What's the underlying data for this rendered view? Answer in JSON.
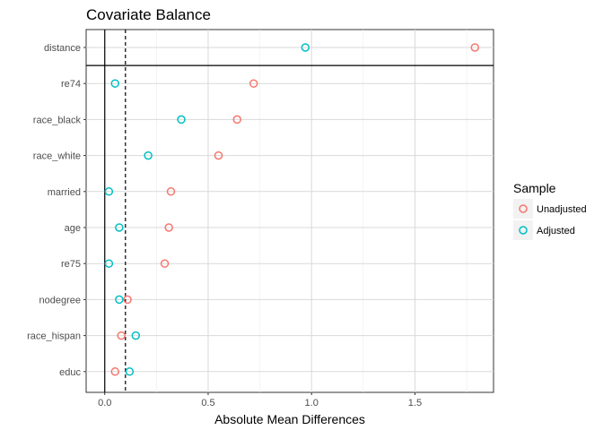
{
  "chart_data": {
    "type": "scatter",
    "title": "Covariate Balance",
    "xlabel": "Absolute Mean Differences",
    "ylabel": "",
    "xlim": [
      -0.09,
      1.88
    ],
    "xticks": [
      0.0,
      0.5,
      1.0,
      1.5
    ],
    "xtick_labels": [
      "0.0",
      "0.5",
      "1.0",
      "1.5"
    ],
    "threshold": 0.1,
    "categories": [
      "distance",
      "re74",
      "race_black",
      "race_white",
      "married",
      "age",
      "re75",
      "nodegree",
      "race_hispan",
      "educ"
    ],
    "series": [
      {
        "name": "Unadjusted",
        "color": "#F8766D",
        "values": [
          1.79,
          0.72,
          0.64,
          0.55,
          0.32,
          0.31,
          0.29,
          0.11,
          0.08,
          0.05
        ]
      },
      {
        "name": "Adjusted",
        "color": "#00BFC4",
        "values": [
          0.97,
          0.05,
          0.37,
          0.21,
          0.02,
          0.07,
          0.02,
          0.07,
          0.15,
          0.12
        ]
      }
    ],
    "legend": {
      "title": "Sample",
      "position": "right"
    }
  }
}
